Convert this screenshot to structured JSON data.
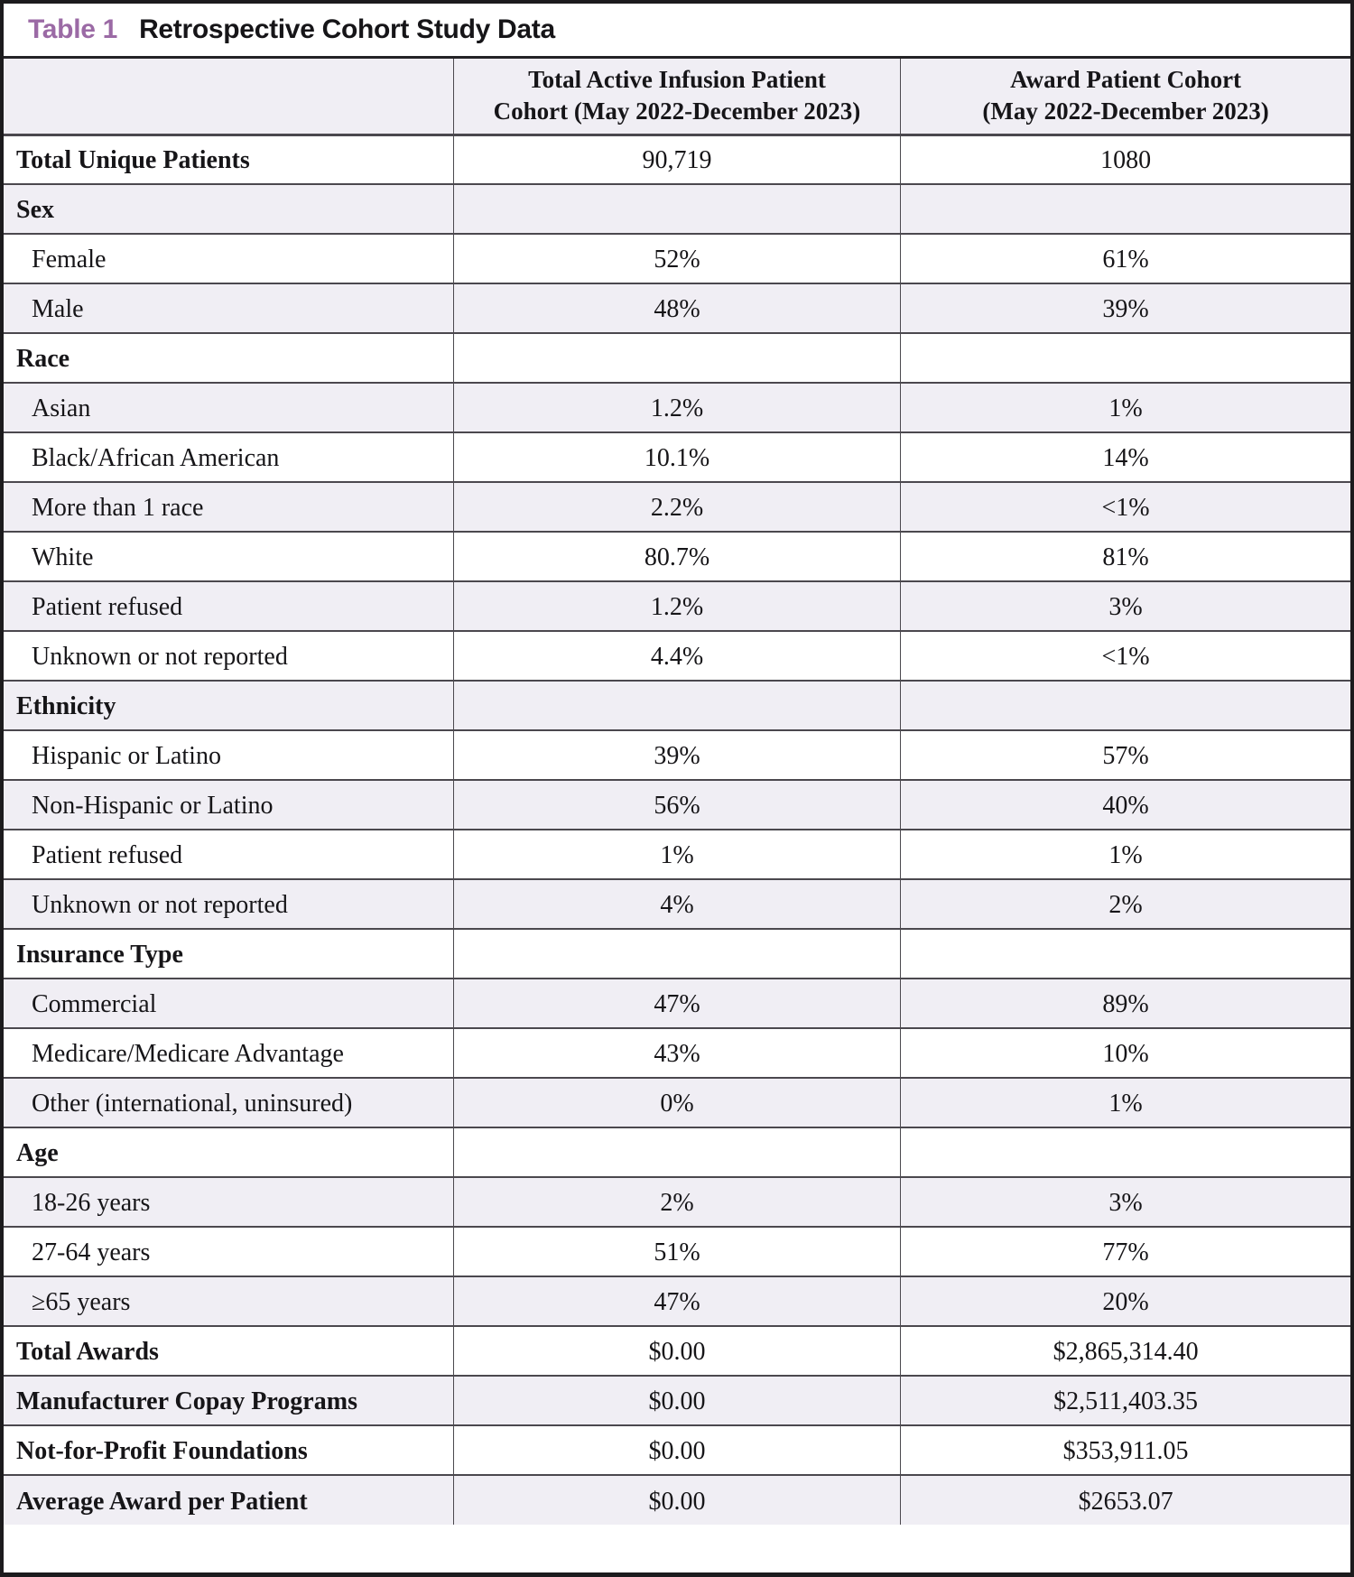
{
  "title": {
    "tag": "Table 1",
    "text": "Retrospective Cohort Study Data"
  },
  "header": {
    "col1_line1": "Total Active Infusion Patient",
    "col1_line2": "Cohort (May 2022-December 2023)",
    "col2_line1": "Award Patient Cohort",
    "col2_line2": "(May 2022-December 2023)"
  },
  "rows": [
    {
      "type": "total",
      "label": "Total Unique Patients",
      "values": [
        "90,719",
        "1080"
      ]
    },
    {
      "type": "section",
      "label": "Sex",
      "values": [
        "",
        ""
      ]
    },
    {
      "type": "item",
      "label": "Female",
      "values": [
        "52%",
        "61%"
      ]
    },
    {
      "type": "item",
      "label": "Male",
      "values": [
        "48%",
        "39%"
      ]
    },
    {
      "type": "section",
      "label": "Race",
      "values": [
        "",
        ""
      ]
    },
    {
      "type": "item",
      "label": "Asian",
      "values": [
        "1.2%",
        "1%"
      ]
    },
    {
      "type": "item",
      "label": "Black/African American",
      "values": [
        "10.1%",
        "14%"
      ]
    },
    {
      "type": "item",
      "label": "More than 1 race",
      "values": [
        "2.2%",
        "<1%"
      ]
    },
    {
      "type": "item",
      "label": "White",
      "values": [
        "80.7%",
        "81%"
      ]
    },
    {
      "type": "item",
      "label": "Patient refused",
      "values": [
        "1.2%",
        "3%"
      ]
    },
    {
      "type": "item",
      "label": "Unknown or not reported",
      "values": [
        "4.4%",
        "<1%"
      ]
    },
    {
      "type": "section",
      "label": "Ethnicity",
      "values": [
        "",
        ""
      ]
    },
    {
      "type": "item",
      "label": "Hispanic or Latino",
      "values": [
        "39%",
        "57%"
      ]
    },
    {
      "type": "item",
      "label": "Non-Hispanic or Latino",
      "values": [
        "56%",
        "40%"
      ]
    },
    {
      "type": "item",
      "label": "Patient refused",
      "values": [
        "1%",
        "1%"
      ]
    },
    {
      "type": "item",
      "label": "Unknown or not reported",
      "values": [
        "4%",
        "2%"
      ]
    },
    {
      "type": "section",
      "label": "Insurance Type",
      "values": [
        "",
        ""
      ]
    },
    {
      "type": "item",
      "label": "Commercial",
      "values": [
        "47%",
        "89%"
      ]
    },
    {
      "type": "item",
      "label": "Medicare/Medicare Advantage",
      "values": [
        "43%",
        "10%"
      ]
    },
    {
      "type": "item",
      "label": "Other (international, uninsured)",
      "values": [
        "0%",
        "1%"
      ]
    },
    {
      "type": "section",
      "label": "Age",
      "values": [
        "",
        ""
      ]
    },
    {
      "type": "item",
      "label": "18-26 years",
      "values": [
        "2%",
        "3%"
      ]
    },
    {
      "type": "item",
      "label": "27-64 years",
      "values": [
        "51%",
        "77%"
      ]
    },
    {
      "type": "item",
      "label": "≥65 years",
      "values": [
        "47%",
        "20%"
      ]
    },
    {
      "type": "total",
      "label": "Total Awards",
      "values": [
        "$0.00",
        "$2,865,314.40"
      ]
    },
    {
      "type": "total",
      "label": "Manufacturer Copay Programs",
      "values": [
        "$0.00",
        "$2,511,403.35"
      ]
    },
    {
      "type": "total",
      "label": "Not-for-Profit Foundations",
      "values": [
        "$0.00",
        "$353,911.05"
      ]
    },
    {
      "type": "total",
      "label": "Average Award per Patient",
      "values": [
        "$0.00",
        "$2653.07"
      ]
    }
  ],
  "colors": {
    "accent_purple": "#9b6aa5",
    "row_shade": "#f0eef4",
    "grid_line": "#4b484e",
    "outer_border": "#1c1b1d",
    "text": "#161518"
  },
  "chart_data": {
    "type": "table",
    "title": "Table 1 Retrospective Cohort Study Data",
    "columns": [
      "",
      "Total Active Infusion Patient Cohort (May 2022-December 2023)",
      "Award Patient Cohort (May 2022-December 2023)"
    ]
  }
}
